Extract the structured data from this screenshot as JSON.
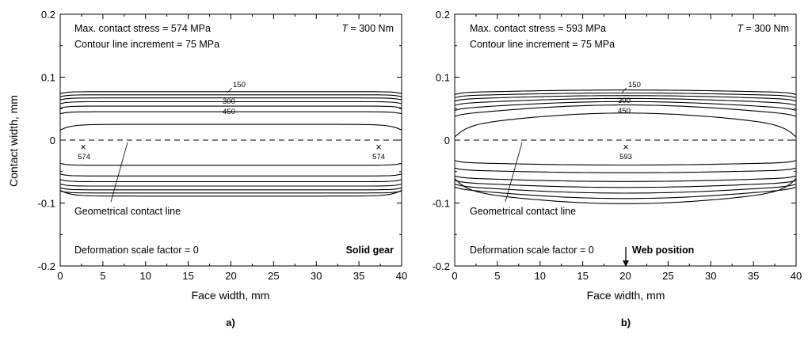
{
  "chart_data": [
    {
      "type": "line",
      "panel_label": "a)",
      "xlabel": "Face width, mm",
      "ylabel": "Contact width, mm",
      "xlim": [
        0,
        40
      ],
      "ylim": [
        -0.2,
        0.2
      ],
      "x_ticks": [
        "0",
        "5",
        "10",
        "15",
        "20",
        "25",
        "30",
        "35",
        "40"
      ],
      "y_ticks": [
        "0.2",
        "0.1",
        "0",
        "-0.1",
        "-0.2"
      ],
      "annotations": {
        "max_stress": "Max. contact stress = 574 MPa",
        "increment": "Contour line increment = 75 MPa",
        "torque_symbol": "T",
        "torque_value": " = 300 Nm",
        "geometry_label": "Geometrical contact line",
        "deformation": "Deformation scale factor = 0",
        "gear_type": "Solid gear"
      },
      "contour_labels": [
        "150",
        "300",
        "450"
      ],
      "max_points": [
        {
          "x": 2.7,
          "y": -0.012,
          "label": "574"
        },
        {
          "x": 37.3,
          "y": -0.012,
          "label": "574"
        }
      ],
      "contact_line_y": 0,
      "contours_upper": [
        0.077,
        0.072,
        0.067,
        0.061,
        0.054,
        0.045,
        0.025
      ],
      "contours_lower": [
        -0.04,
        -0.057,
        -0.066,
        -0.073,
        -0.079,
        -0.084,
        -0.089
      ],
      "contour_values": [
        0,
        75,
        150,
        225,
        300,
        375,
        450
      ]
    },
    {
      "type": "line",
      "panel_label": "b)",
      "xlabel": "Face width, mm",
      "ylabel": "",
      "xlim": [
        0,
        40
      ],
      "ylim": [
        -0.2,
        0.2
      ],
      "x_ticks": [
        "0",
        "5",
        "10",
        "15",
        "20",
        "25",
        "30",
        "35",
        "40"
      ],
      "y_ticks": [
        "0.2",
        "0.1",
        "0",
        "-0.1",
        "-0.2"
      ],
      "annotations": {
        "max_stress": "Max. contact stress = 593 MPa",
        "increment": "Contour line increment = 75 MPa",
        "torque_symbol": "T",
        "torque_value": " = 300 Nm",
        "geometry_label": "Geometrical contact line",
        "deformation": "Deformation scale factor = 0",
        "web_position": "Web position"
      },
      "contour_labels": [
        "150",
        "300",
        "450"
      ],
      "max_points": [
        {
          "x": 20,
          "y": -0.012,
          "label": "593"
        }
      ],
      "contact_line_y": 0,
      "contours_upper": [
        0.077,
        0.072,
        0.067,
        0.061,
        0.054,
        0.046,
        0.03
      ],
      "contours_lower": [
        -0.037,
        -0.049,
        -0.062,
        -0.07,
        -0.077,
        -0.083,
        -0.088
      ],
      "contour_values": [
        0,
        75,
        150,
        225,
        300,
        375,
        450
      ]
    }
  ]
}
